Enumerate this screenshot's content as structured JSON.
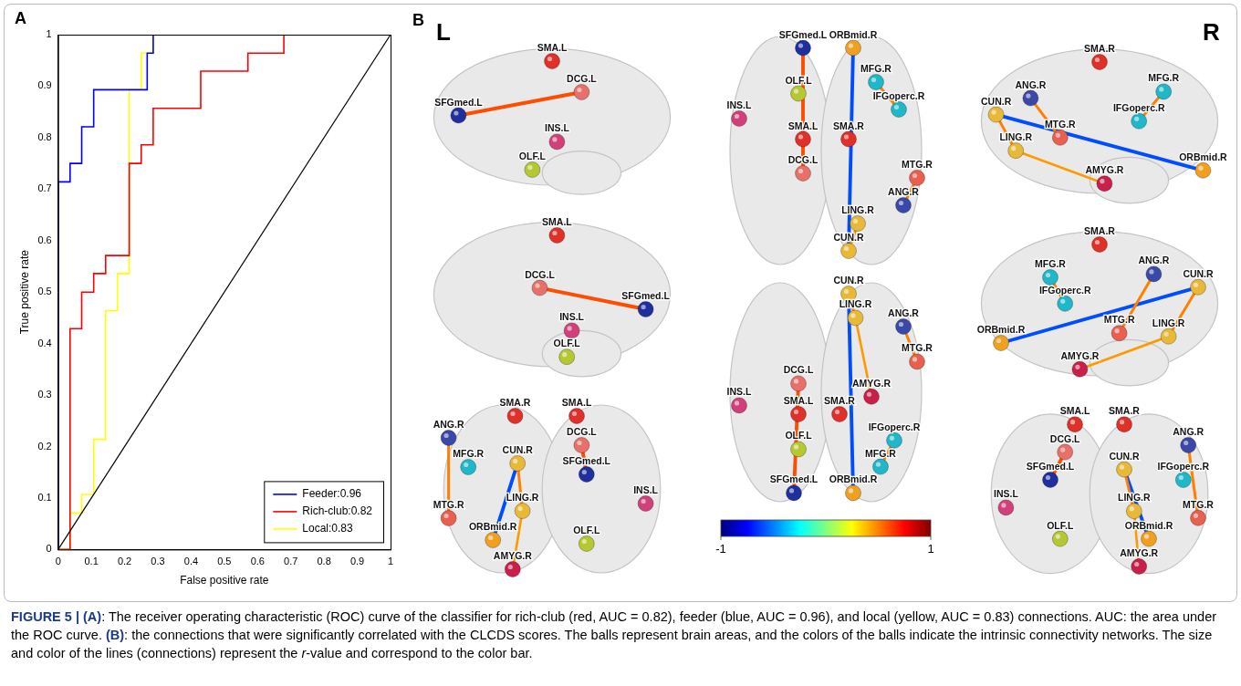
{
  "panel_labels": [
    "A",
    "B"
  ],
  "chart_data": {
    "type": "line",
    "x_label": "False positive rate",
    "y_label": "True positive rate",
    "xlim": [
      0,
      1
    ],
    "ylim": [
      0,
      1
    ],
    "xticks": [
      0,
      0.1,
      0.2,
      0.3,
      0.4,
      0.5,
      0.6,
      0.7,
      0.8,
      0.9,
      1
    ],
    "yticks": [
      0,
      0.1,
      0.2,
      0.3,
      0.4,
      0.5,
      0.6,
      0.7,
      0.8,
      0.9,
      1
    ],
    "grid": false,
    "legend": "lower right",
    "series": [
      {
        "name": "Feeder:0.96",
        "color": "#0000ff",
        "x": [
          0,
          0,
          0.036,
          0.036,
          0.071,
          0.071,
          0.107,
          0.107,
          0.268,
          0.268,
          0.286,
          0.286,
          1
        ],
        "values": [
          0,
          0.714,
          0.714,
          0.75,
          0.75,
          0.821,
          0.821,
          0.893,
          0.893,
          0.964,
          0.964,
          1,
          1
        ]
      },
      {
        "name": "Rich-club:0.82",
        "color": "#ff0000",
        "x": [
          0,
          0.036,
          0.036,
          0.071,
          0.071,
          0.107,
          0.107,
          0.143,
          0.143,
          0.214,
          0.214,
          0.25,
          0.25,
          0.286,
          0.286,
          0.429,
          0.429,
          0.571,
          0.571,
          0.679,
          0.679,
          1
        ],
        "values": [
          0,
          0,
          0.429,
          0.429,
          0.5,
          0.5,
          0.536,
          0.536,
          0.571,
          0.571,
          0.75,
          0.75,
          0.786,
          0.786,
          0.857,
          0.857,
          0.929,
          0.929,
          0.964,
          0.964,
          1,
          1
        ]
      },
      {
        "name": "Local:0.83",
        "color": "#ffff00",
        "x": [
          0,
          0.036,
          0.036,
          0.071,
          0.071,
          0.107,
          0.107,
          0.143,
          0.143,
          0.179,
          0.179,
          0.214,
          0.214,
          0.25,
          0.25,
          0.286,
          0.286,
          1
        ],
        "values": [
          0,
          0,
          0.071,
          0.071,
          0.107,
          0.107,
          0.214,
          0.214,
          0.464,
          0.464,
          0.536,
          0.536,
          0.893,
          0.893,
          0.964,
          0.964,
          1,
          1
        ]
      }
    ],
    "reference_line": {
      "color": "#000000",
      "x": [
        0,
        1
      ],
      "values": [
        0,
        1
      ]
    }
  },
  "panel_b": {
    "hemisphere_labels": [
      "L",
      "R"
    ],
    "nodes": [
      {
        "label": "SMA.L",
        "color": "#e0302a"
      },
      {
        "label": "SMA.R",
        "color": "#e0302a"
      },
      {
        "label": "DCG.L",
        "color": "#e8706a"
      },
      {
        "label": "SFGmed.L",
        "color": "#1f2f9e"
      },
      {
        "label": "INS.L",
        "color": "#d0407a"
      },
      {
        "label": "OLF.L",
        "color": "#b5c832"
      },
      {
        "label": "ORBmid.R",
        "color": "#f0a020"
      },
      {
        "label": "MFG.R",
        "color": "#20b8c8"
      },
      {
        "label": "IFGoperc.R",
        "color": "#20b8c8"
      },
      {
        "label": "MTG.R",
        "color": "#e86050"
      },
      {
        "label": "ANG.R",
        "color": "#3a48a8"
      },
      {
        "label": "LING.R",
        "color": "#e8b838"
      },
      {
        "label": "CUN.R",
        "color": "#e8b838"
      },
      {
        "label": "AMYG.R",
        "color": "#c8204a"
      }
    ],
    "edges": [
      {
        "source": 3,
        "target": 2,
        "r": 0.6
      },
      {
        "source": 6,
        "target": 12,
        "r": -0.6
      },
      {
        "source": 7,
        "target": 8,
        "r": 0.5
      },
      {
        "source": 12,
        "target": 11,
        "r": 0.5
      },
      {
        "source": 11,
        "target": 13,
        "r": 0.45
      },
      {
        "source": 10,
        "target": 9,
        "r": 0.5
      }
    ],
    "colorbar": {
      "range": [
        -1,
        1
      ],
      "ticks": [
        -1,
        1
      ]
    }
  },
  "caption": [
    {
      "text": "FIGURE 5 | (A)",
      "style": "bold"
    },
    {
      "text": ": The receiver operating characteristic (ROC) curve of the classifier for rich-club (red, AUC = 0.82), feeder (blue, AUC = 0.96), and local (yellow, AUC = 0.83) connections. AUC: the area under the ROC curve. "
    },
    {
      "text": "(B)",
      "style": "bold"
    },
    {
      "text": ": the connections that were significantly correlated with the CLCDS scores. The balls represent brain areas, and the colors of the balls indicate the intrinsic connectivity networks. The size and color of the lines (connections) represent the "
    },
    {
      "text": "r",
      "style": "italic"
    },
    {
      "text": "-value and correspond to the color bar."
    }
  ]
}
